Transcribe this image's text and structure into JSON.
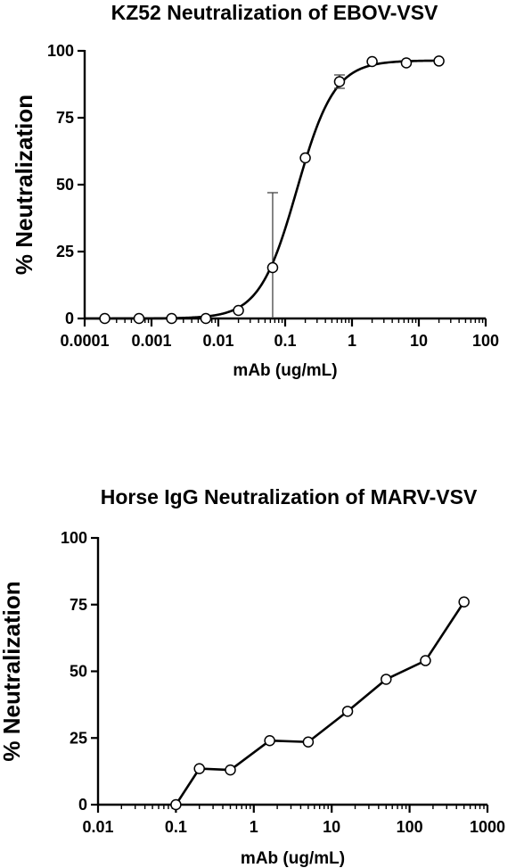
{
  "chart_data": [
    {
      "type": "line",
      "title": "KZ52 Neutralization of EBOV-VSV",
      "xlabel": "mAb (ug/mL)",
      "ylabel": "% Neutralization",
      "xscale": "log",
      "xlim": [
        0.0001,
        100
      ],
      "ylim": [
        0,
        100
      ],
      "xticks": [
        "0.0001",
        "0.001",
        "0.01",
        "0.1",
        "1",
        "10",
        "100"
      ],
      "yticks": [
        "0",
        "25",
        "50",
        "75",
        "100"
      ],
      "fit": "sigmoidal",
      "series": [
        {
          "x": [
            0.0002,
            0.00065,
            0.002,
            0.0065,
            0.02,
            0.065,
            0.2,
            0.65,
            2,
            6.5,
            20
          ],
          "y": [
            0,
            0,
            0,
            0,
            3,
            19,
            60,
            88.5,
            96,
            95.5,
            96.2
          ],
          "error": [
            0,
            0,
            0,
            0,
            0,
            28,
            0,
            2.5,
            0,
            0,
            0
          ]
        }
      ]
    },
    {
      "type": "line",
      "title": "Horse IgG Neutralization of MARV-VSV",
      "xlabel": "mAb (ug/mL)",
      "ylabel": "% Neutralization",
      "xscale": "log",
      "xlim": [
        0.01,
        1000
      ],
      "ylim": [
        0,
        100
      ],
      "xticks": [
        "0.01",
        "0.1",
        "1",
        "10",
        "100",
        "1000"
      ],
      "yticks": [
        "0",
        "25",
        "50",
        "75",
        "100"
      ],
      "series": [
        {
          "x": [
            0.1,
            0.2,
            0.5,
            1.6,
            5,
            16,
            50,
            160,
            500
          ],
          "y": [
            0,
            13.5,
            13,
            24,
            23.5,
            35,
            47,
            54,
            76
          ]
        }
      ]
    }
  ]
}
